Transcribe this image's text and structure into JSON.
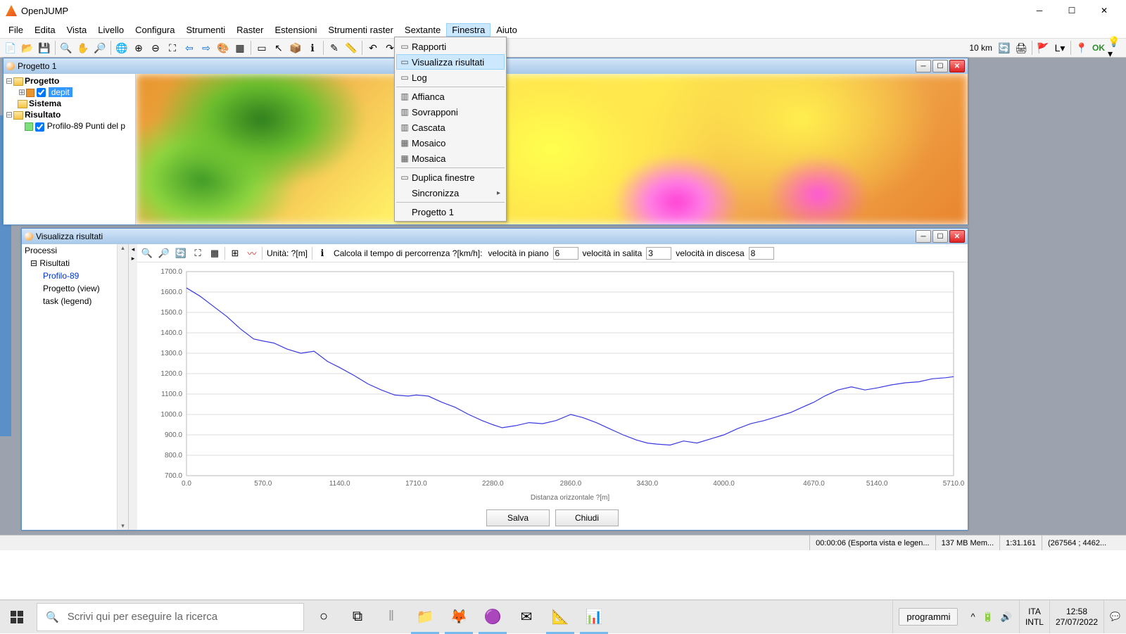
{
  "app": {
    "title": "OpenJUMP"
  },
  "menubar": [
    "File",
    "Edita",
    "Vista",
    "Livello",
    "Configura",
    "Strumenti",
    "Raster",
    "Estensioni",
    "Strumenti raster",
    "Sextante",
    "Finestra",
    "Aiuto"
  ],
  "menubar_active": "Finestra",
  "toolbar_scale": "10 km",
  "toolbar_ok": "OK",
  "toolbar_L": "L",
  "dropdown": {
    "items": [
      {
        "label": "Rapporti",
        "icon": "▭"
      },
      {
        "label": "Visualizza risultati",
        "icon": "▭",
        "hover": true
      },
      {
        "label": "Log",
        "icon": "▭"
      },
      {
        "sep": true
      },
      {
        "label": "Affianca",
        "icon": "▥"
      },
      {
        "label": "Sovrapponi",
        "icon": "▥"
      },
      {
        "label": "Cascata",
        "icon": "▥"
      },
      {
        "label": "Mosaico",
        "icon": "▦"
      },
      {
        "label": "Mosaica",
        "icon": "▦"
      },
      {
        "sep": true
      },
      {
        "label": "Duplica finestre",
        "icon": "▭"
      },
      {
        "label": "Sincronizza",
        "submenu": true
      },
      {
        "sep": true
      },
      {
        "label": "Progetto 1"
      }
    ]
  },
  "project_win": {
    "title": "Progetto 1",
    "tree": {
      "root": "Progetto",
      "layer": "depit",
      "sistema": "Sistema",
      "risultato": "Risultato",
      "profilo_layer": "Profilo-89 Punti del p"
    }
  },
  "result_win": {
    "title": "Visualizza risultati",
    "proc_tree": {
      "processi": "Processi",
      "risultati": "Risultati",
      "items": [
        "Profilo-89",
        "Progetto (view)",
        "task (legend)"
      ]
    },
    "unit_label": "Unità: ?[m]",
    "calc_label": "Calcola il tempo di percorrenza ?[km/h]:",
    "flat_label": "velocità in piano",
    "up_label": "velocità in salita",
    "down_label": "velocità in discesa",
    "flat_val": "6",
    "up_val": "3",
    "down_val": "8",
    "save_btn": "Salva",
    "close_btn": "Chiudi"
  },
  "chart": {
    "type": "line",
    "x_label": "Distanza orizzontale ?[m]",
    "x_ticks": [
      0,
      570,
      1140,
      1710,
      2280,
      2860,
      3430,
      4000,
      4670,
      5140,
      5710
    ],
    "x_tick_labels": [
      "0.0",
      "570.0",
      "1140.0",
      "1710.0",
      "2280.0",
      "2860.0",
      "3430.0",
      "4000.0",
      "4670.0",
      "5140.0",
      "5710.0"
    ],
    "y_ticks": [
      700,
      800,
      900,
      1000,
      1100,
      1200,
      1300,
      1400,
      1500,
      1600,
      1700
    ],
    "y_tick_labels": [
      "700.0",
      "800.0",
      "900.0",
      "1000.0",
      "1100.0",
      "1200.0",
      "1300.0",
      "1400.0",
      "1500.0",
      "1600.0",
      "1700.0"
    ],
    "xlim": [
      0,
      5710
    ],
    "ylim": [
      700,
      1700
    ],
    "line_color": "#3a3ae0",
    "grid_color": "#dddddd",
    "background": "#ffffff",
    "points": [
      [
        0,
        1620
      ],
      [
        100,
        1580
      ],
      [
        200,
        1530
      ],
      [
        300,
        1480
      ],
      [
        400,
        1420
      ],
      [
        500,
        1370
      ],
      [
        570,
        1360
      ],
      [
        650,
        1350
      ],
      [
        750,
        1320
      ],
      [
        850,
        1300
      ],
      [
        950,
        1310
      ],
      [
        1050,
        1260
      ],
      [
        1140,
        1230
      ],
      [
        1250,
        1190
      ],
      [
        1350,
        1150
      ],
      [
        1450,
        1120
      ],
      [
        1550,
        1095
      ],
      [
        1650,
        1090
      ],
      [
        1710,
        1095
      ],
      [
        1800,
        1090
      ],
      [
        1900,
        1060
      ],
      [
        2000,
        1035
      ],
      [
        2100,
        1000
      ],
      [
        2200,
        970
      ],
      [
        2280,
        950
      ],
      [
        2350,
        935
      ],
      [
        2450,
        945
      ],
      [
        2550,
        960
      ],
      [
        2650,
        955
      ],
      [
        2750,
        970
      ],
      [
        2860,
        1000
      ],
      [
        2950,
        985
      ],
      [
        3050,
        960
      ],
      [
        3150,
        930
      ],
      [
        3250,
        900
      ],
      [
        3350,
        875
      ],
      [
        3430,
        860
      ],
      [
        3500,
        855
      ],
      [
        3600,
        850
      ],
      [
        3700,
        870
      ],
      [
        3800,
        860
      ],
      [
        3900,
        880
      ],
      [
        4000,
        900
      ],
      [
        4100,
        930
      ],
      [
        4200,
        955
      ],
      [
        4300,
        970
      ],
      [
        4400,
        990
      ],
      [
        4500,
        1010
      ],
      [
        4600,
        1040
      ],
      [
        4670,
        1060
      ],
      [
        4750,
        1090
      ],
      [
        4850,
        1120
      ],
      [
        4950,
        1135
      ],
      [
        5050,
        1120
      ],
      [
        5140,
        1130
      ],
      [
        5250,
        1145
      ],
      [
        5350,
        1155
      ],
      [
        5450,
        1160
      ],
      [
        5550,
        1175
      ],
      [
        5650,
        1180
      ],
      [
        5710,
        1185
      ]
    ]
  },
  "statusbar": {
    "time": "00:00:06 (Esporta vista e legen...",
    "mem": "137 MB Mem...",
    "scale": "1:31.161",
    "coord": "(267564 ; 4462..."
  },
  "taskbar": {
    "search_placeholder": "Scrivi qui per eseguire la ricerca",
    "prog_btn": "programmi",
    "lang1": "ITA",
    "lang2": "INTL",
    "clock": "12:58",
    "date": "27/07/2022"
  }
}
